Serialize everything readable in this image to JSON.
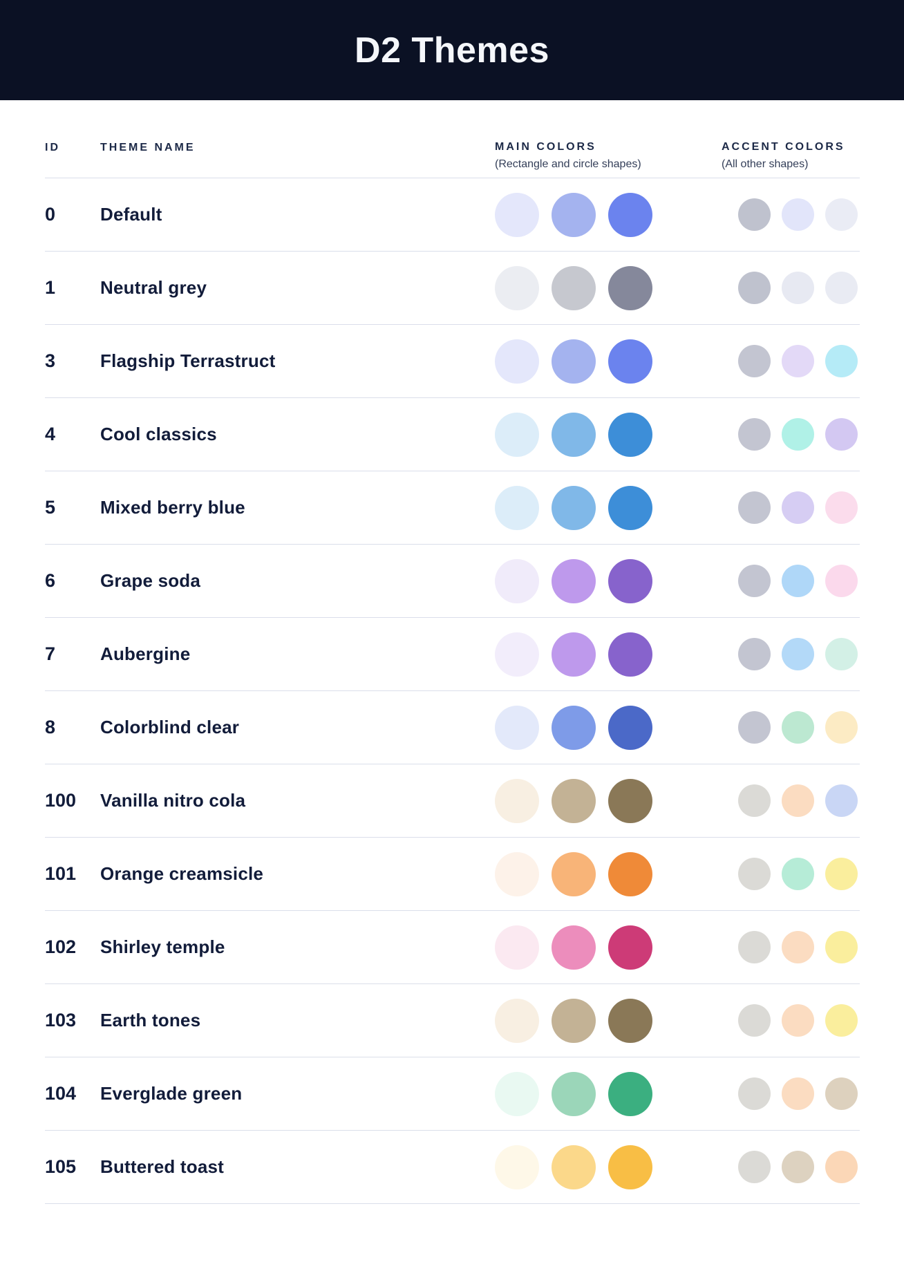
{
  "header": {
    "title": "D2 Themes"
  },
  "table": {
    "columns": {
      "id": "ID",
      "name": "THEME NAME",
      "main": "MAIN COLORS",
      "main_sub": "(Rectangle and circle shapes)",
      "accent": "ACCENT COLORS",
      "accent_sub": "(All other shapes)"
    },
    "rows": [
      {
        "id": "0",
        "name": "Default",
        "main": [
          "#e4e7fb",
          "#a4b3ef",
          "#6b83ee"
        ],
        "accent": [
          "#bfc2ce",
          "#e2e5fa",
          "#eaecf5"
        ]
      },
      {
        "id": "1",
        "name": "Neutral grey",
        "main": [
          "#ebedf2",
          "#c6c8cf",
          "#85889b"
        ],
        "accent": [
          "#bfc2ce",
          "#e7e9f2",
          "#e9ebf3"
        ]
      },
      {
        "id": "3",
        "name": "Flagship Terrastruct",
        "main": [
          "#e4e7fb",
          "#a4b3ef",
          "#6b83ee"
        ],
        "accent": [
          "#c3c5d1",
          "#e3d9f7",
          "#b5ebf7"
        ]
      },
      {
        "id": "4",
        "name": "Cool classics",
        "main": [
          "#dcedf9",
          "#80b8e8",
          "#3d8ed8"
        ],
        "accent": [
          "#c3c5d1",
          "#b0f1e7",
          "#d3c8f2"
        ]
      },
      {
        "id": "5",
        "name": "Mixed berry blue",
        "main": [
          "#dcedf9",
          "#80b8e8",
          "#3d8ed8"
        ],
        "accent": [
          "#c3c5d1",
          "#d6cdf3",
          "#fbdcec"
        ]
      },
      {
        "id": "6",
        "name": "Grape soda",
        "main": [
          "#f0ebfa",
          "#be99ec",
          "#8763cc"
        ],
        "accent": [
          "#c3c5d1",
          "#afd7f8",
          "#fbd9ec"
        ]
      },
      {
        "id": "7",
        "name": "Aubergine",
        "main": [
          "#f2edfb",
          "#be99ec",
          "#8763cc"
        ],
        "accent": [
          "#c3c5d1",
          "#b3d9f8",
          "#d3f0e6"
        ]
      },
      {
        "id": "8",
        "name": "Colorblind clear",
        "main": [
          "#e3e9fa",
          "#7e9be8",
          "#4b69c8"
        ],
        "accent": [
          "#c3c5d1",
          "#bce8d1",
          "#fcebc4"
        ]
      },
      {
        "id": "100",
        "name": "Vanilla nitro cola",
        "main": [
          "#f8efe2",
          "#c3b295",
          "#8a7857"
        ],
        "accent": [
          "#dbdad6",
          "#fbdcc1",
          "#c9d6f5"
        ]
      },
      {
        "id": "101",
        "name": "Orange creamsicle",
        "main": [
          "#fdf2e9",
          "#f8b478",
          "#ef8a38"
        ],
        "accent": [
          "#dbdad6",
          "#b6ecd7",
          "#faee9d"
        ]
      },
      {
        "id": "102",
        "name": "Shirley temple",
        "main": [
          "#fbe9f1",
          "#ec8dbc",
          "#cd3b77"
        ],
        "accent": [
          "#dbdad6",
          "#fbdcc1",
          "#faee9d"
        ]
      },
      {
        "id": "103",
        "name": "Earth tones",
        "main": [
          "#f8efe2",
          "#c3b295",
          "#8a7857"
        ],
        "accent": [
          "#dbdad6",
          "#fbdcc1",
          "#faee9d"
        ]
      },
      {
        "id": "104",
        "name": "Everglade green",
        "main": [
          "#e9f9f2",
          "#9bd6b9",
          "#3baf80"
        ],
        "accent": [
          "#dbdad6",
          "#fbdcc1",
          "#ddd1be"
        ]
      },
      {
        "id": "105",
        "name": "Buttered toast",
        "main": [
          "#fef8e8",
          "#fbd88a",
          "#f8be45"
        ],
        "accent": [
          "#dbdad6",
          "#ddd2c0",
          "#fbd7b7"
        ]
      }
    ]
  },
  "colors": {
    "title_band_bg": "#0b1124",
    "title_text": "#f5f7fb",
    "heading_text": "#1c2947",
    "body_text": "#121c3a",
    "divider": "#dadeea"
  }
}
